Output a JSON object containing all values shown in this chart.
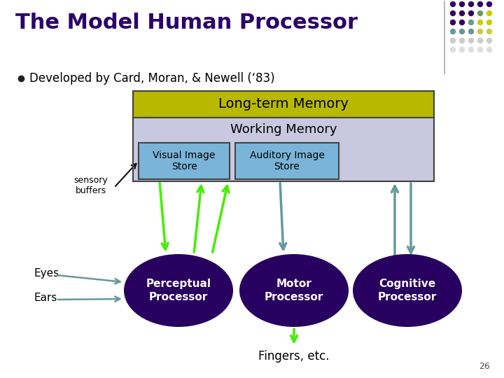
{
  "title": "The Model Human Processor",
  "bullet_text": "Developed by Card, Moran, & Newell (‘83)",
  "ltm_label": "Long-term Memory",
  "wm_label": "Working Memory",
  "vis_label": "Visual Image\nStore",
  "aud_label": "Auditory Image\nStore",
  "sensory_label": "sensory\nbuffers",
  "eyes_label": "Eyes",
  "ears_label": "Ears",
  "perceptual_label": "Perceptual\nProcessor",
  "motor_label": "Motor\nProcessor",
  "cognitive_label": "Cognitive\nProcessor",
  "fingers_label": "Fingers, etc.",
  "page_num": "26",
  "bg_color": "#ffffff",
  "title_color": "#2b006b",
  "ltm_fill": "#b8b800",
  "ltm_outline": "#444444",
  "wm_fill": "#c8c8e0",
  "store_fill": "#7ab4d8",
  "store_outline": "#444444",
  "processor_fill": "#280060",
  "arrow_green": "#44ee00",
  "arrow_teal": "#669999",
  "dot_colors_grid": [
    [
      "#330066",
      "#330066",
      "#330066",
      "#330066",
      "#330066"
    ],
    [
      "#330066",
      "#330066",
      "#330066",
      "#330066",
      "#330066"
    ],
    [
      "#330066",
      "#669966",
      "#669966",
      "#cccc00",
      "#cccc00"
    ],
    [
      "#669999",
      "#669999",
      "#669999",
      "#cccc00",
      "#cccc00"
    ],
    [
      "#cccc00",
      "#cccc00",
      "#cccc00",
      "#cccc44",
      "#cccc44"
    ],
    [
      "#cccccc",
      "#cccccc",
      "#cccccc",
      "#cccccc",
      "#cccccc"
    ],
    [
      "#dddddd",
      "#dddddd",
      "#dddddd",
      "#dddddd",
      "#dddddd"
    ]
  ]
}
